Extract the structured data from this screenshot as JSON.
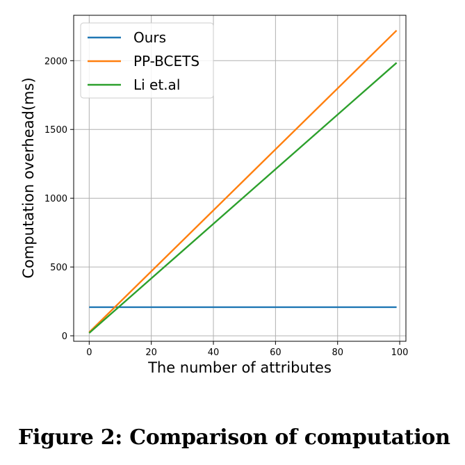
{
  "chart_data": {
    "type": "line",
    "title": "",
    "xlabel": "The number of attributes",
    "ylabel": "Computation overhead(ms)",
    "xlim": [
      -5,
      102
    ],
    "ylim": [
      -40,
      2330
    ],
    "xticks": [
      0,
      20,
      40,
      60,
      80,
      100
    ],
    "yticks": [
      0,
      500,
      1000,
      1500,
      2000
    ],
    "grid": true,
    "legend_position": "upper-left",
    "series": [
      {
        "name": "Ours",
        "color": "#1f77b4",
        "x": [
          0,
          99
        ],
        "y": [
          208,
          208
        ]
      },
      {
        "name": "PP-BCETS",
        "color": "#ff7f0e",
        "x": [
          0,
          99
        ],
        "y": [
          25,
          2220
        ]
      },
      {
        "name": "Li et.al",
        "color": "#2ca02c",
        "x": [
          0,
          99
        ],
        "y": [
          20,
          1985
        ]
      }
    ]
  },
  "caption": "Figure 2: Comparison of computation"
}
